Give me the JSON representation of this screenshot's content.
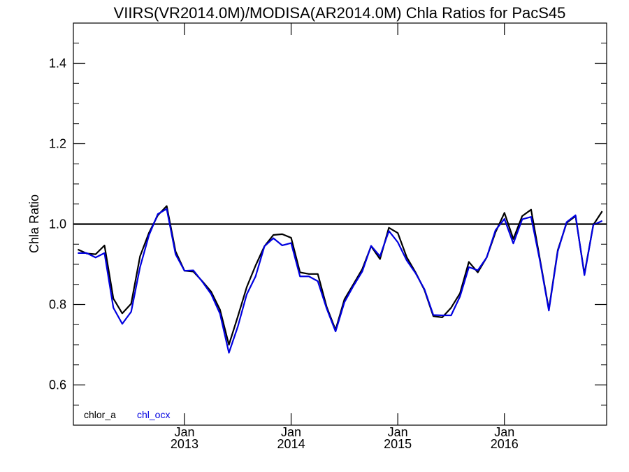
{
  "chart_data": {
    "type": "line",
    "title": "VIIRS(VR2014.0M)/MODISA(AR2014.0M)  Chla Ratios for PacS45",
    "ylabel": "Chla Ratio",
    "xlabel": "",
    "xlim": [
      "2012-01",
      "2016-12"
    ],
    "ylim": [
      0.5,
      1.5
    ],
    "yticks": [
      0.6,
      0.8,
      1.0,
      1.2,
      1.4
    ],
    "ytick_labels": [
      "0.6",
      "0.8",
      "1.0",
      "1.2",
      "1.4"
    ],
    "xticks": [
      {
        "x": "2013-01",
        "month": "Jan",
        "year": "2013"
      },
      {
        "x": "2014-01",
        "month": "Jan",
        "year": "2014"
      },
      {
        "x": "2015-01",
        "month": "Jan",
        "year": "2015"
      },
      {
        "x": "2016-01",
        "month": "Jan",
        "year": "2016"
      }
    ],
    "reference_line": 1.0,
    "x": [
      "2012-01",
      "2012-02",
      "2012-03",
      "2012-04",
      "2012-05",
      "2012-06",
      "2012-07",
      "2012-08",
      "2012-09",
      "2012-10",
      "2012-11",
      "2012-12",
      "2013-01",
      "2013-02",
      "2013-03",
      "2013-04",
      "2013-05",
      "2013-06",
      "2013-07",
      "2013-08",
      "2013-09",
      "2013-10",
      "2013-11",
      "2013-12",
      "2014-01",
      "2014-02",
      "2014-03",
      "2014-04",
      "2014-05",
      "2014-06",
      "2014-07",
      "2014-08",
      "2014-09",
      "2014-10",
      "2014-11",
      "2014-12",
      "2015-01",
      "2015-02",
      "2015-03",
      "2015-04",
      "2015-05",
      "2015-06",
      "2015-07",
      "2015-08",
      "2015-09",
      "2015-10",
      "2015-11",
      "2015-12",
      "2016-01",
      "2016-02",
      "2016-03",
      "2016-04",
      "2016-05",
      "2016-06",
      "2016-07",
      "2016-08",
      "2016-09",
      "2016-10",
      "2016-11",
      "2016-12"
    ],
    "series": [
      {
        "name": "chlor_a",
        "color": "#000000",
        "values": [
          0.937,
          0.927,
          0.925,
          0.947,
          0.815,
          0.778,
          0.802,
          0.92,
          0.978,
          1.022,
          1.045,
          0.932,
          0.884,
          0.882,
          0.858,
          0.832,
          0.787,
          0.7,
          0.77,
          0.843,
          0.897,
          0.945,
          0.973,
          0.975,
          0.966,
          0.88,
          0.876,
          0.876,
          0.794,
          0.737,
          0.813,
          0.85,
          0.888,
          0.945,
          0.913,
          0.991,
          0.978,
          0.918,
          0.88,
          0.836,
          0.771,
          0.768,
          0.792,
          0.828,
          0.906,
          0.88,
          0.917,
          0.98,
          1.028,
          0.963,
          1.02,
          1.036,
          0.912,
          0.788,
          0.935,
          1.003,
          1.02,
          0.876,
          0.998,
          1.032
        ]
      },
      {
        "name": "chl_ocx",
        "color": "#0000e0",
        "values": [
          0.928,
          0.928,
          0.917,
          0.928,
          0.792,
          0.752,
          0.782,
          0.893,
          0.972,
          1.025,
          1.038,
          0.925,
          0.884,
          0.885,
          0.857,
          0.826,
          0.777,
          0.68,
          0.745,
          0.825,
          0.87,
          0.945,
          0.965,
          0.947,
          0.953,
          0.87,
          0.87,
          0.858,
          0.79,
          0.733,
          0.806,
          0.846,
          0.882,
          0.946,
          0.92,
          0.983,
          0.955,
          0.91,
          0.878,
          0.838,
          0.774,
          0.773,
          0.773,
          0.82,
          0.893,
          0.885,
          0.917,
          0.985,
          1.013,
          0.952,
          1.012,
          1.018,
          0.908,
          0.785,
          0.932,
          1.005,
          1.022,
          0.873,
          0.998,
          1.008
        ]
      }
    ],
    "legend": [
      {
        "label": "chlor_a",
        "color": "#000000"
      },
      {
        "label": "chl_ocx",
        "color": "#0000e0"
      }
    ],
    "legend_position": "bottom-left",
    "grid": false
  }
}
